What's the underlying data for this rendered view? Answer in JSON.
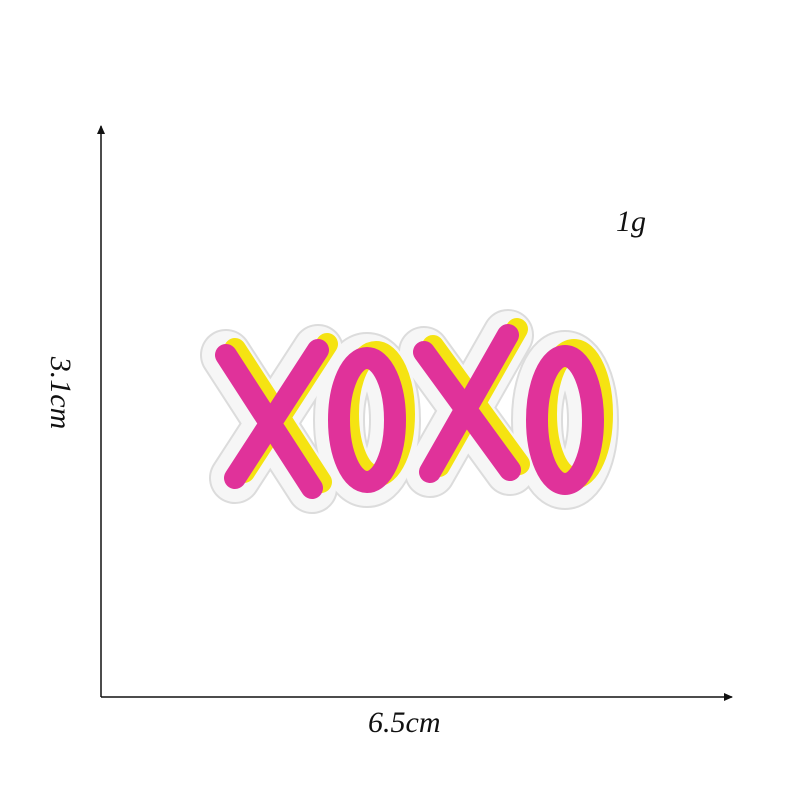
{
  "dimensions": {
    "weight": "1g",
    "width": "6.5cm",
    "height": "3.1cm"
  },
  "patch": {
    "text": "XOXO",
    "colors": {
      "fill": "#e0329a",
      "outline": "#f5e312",
      "border": "#f4f4f4",
      "border_edge": "#dcdcdc",
      "axis": "#111111"
    }
  }
}
